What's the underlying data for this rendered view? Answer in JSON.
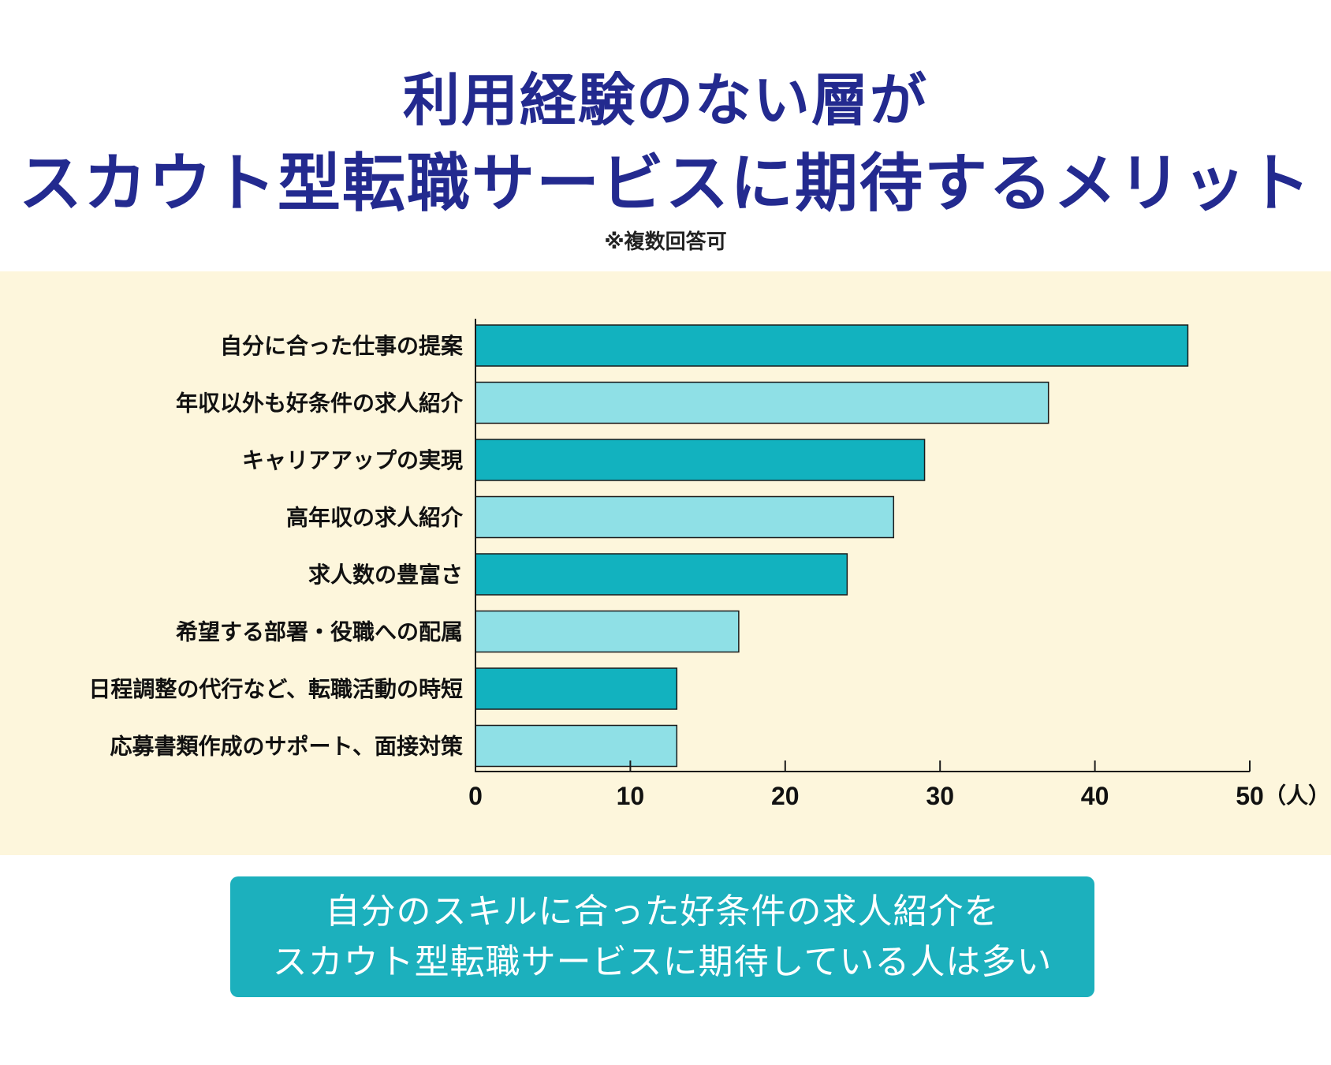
{
  "title_line1": "利用経験のない層が",
  "title_line2": "スカウト型転職サービスに期待するメリット",
  "note": "※複数回答可",
  "summary_line1": "自分のスキルに合った好条件の求人紹介を",
  "summary_line2": "スカウト型転職サービスに期待している人は多い",
  "colors": {
    "dark_bar": "#12b2bf",
    "light_bar": "#8fe0e6",
    "panel_bg": "#fdf6dc",
    "title": "#232a8f"
  },
  "chart_data": {
    "type": "bar",
    "orientation": "horizontal",
    "categories": [
      "自分に合った仕事の提案",
      "年収以外も好条件の求人紹介",
      "キャリアアップの実現",
      "高年収の求人紹介",
      "求人数の豊富さ",
      "希望する部署・役職への配属",
      "日程調整の代行など、転職活動の時短",
      "応募書類作成のサポート、面接対策"
    ],
    "values": [
      46,
      37,
      29,
      27,
      24,
      17,
      13,
      13
    ],
    "xlim": [
      0,
      50
    ],
    "xticks": [
      0,
      10,
      20,
      30,
      40,
      50
    ],
    "x_unit": "（人）",
    "title": "利用経験のない層がスカウト型転職サービスに期待するメリット",
    "xlabel": "",
    "ylabel": "",
    "grid": false,
    "legend": false
  }
}
